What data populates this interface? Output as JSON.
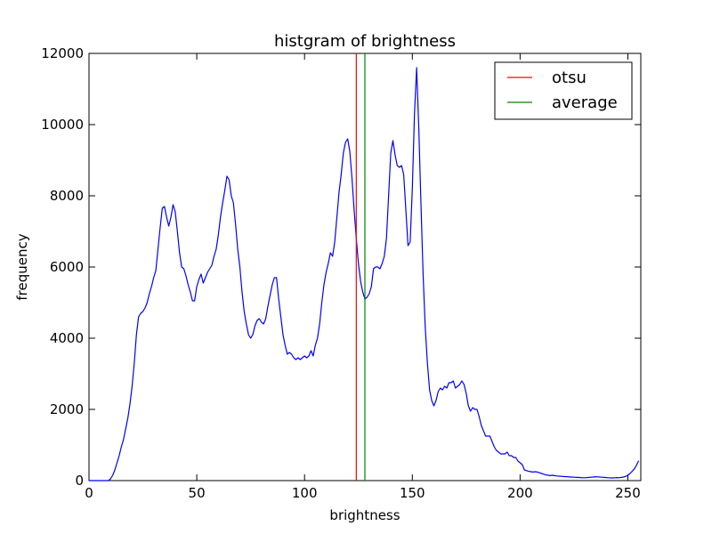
{
  "chart_data": {
    "type": "line",
    "title": "histgram of brightness",
    "xlabel": "brightness",
    "ylabel": "frequency",
    "xlim": [
      0,
      256
    ],
    "ylim": [
      0,
      12000
    ],
    "xticks": [
      "0",
      "50",
      "100",
      "150",
      "200",
      "250"
    ],
    "yticks": [
      "0",
      "2000",
      "4000",
      "6000",
      "8000",
      "10000",
      "12000"
    ],
    "grid": false,
    "legend_position": "top-right",
    "series": [
      {
        "name": "",
        "color": "#0000ff",
        "points": [
          [
            0,
            0
          ],
          [
            5,
            0
          ],
          [
            9,
            0
          ],
          [
            10,
            50
          ],
          [
            11,
            150
          ],
          [
            12,
            300
          ],
          [
            13,
            500
          ],
          [
            14,
            700
          ],
          [
            15,
            950
          ],
          [
            16,
            1150
          ],
          [
            17,
            1450
          ],
          [
            18,
            1750
          ],
          [
            19,
            2150
          ],
          [
            20,
            2650
          ],
          [
            21,
            3300
          ],
          [
            22,
            4100
          ],
          [
            23,
            4600
          ],
          [
            24,
            4700
          ],
          [
            25,
            4750
          ],
          [
            26,
            4850
          ],
          [
            27,
            5000
          ],
          [
            28,
            5250
          ],
          [
            29,
            5450
          ],
          [
            30,
            5700
          ],
          [
            31,
            5900
          ],
          [
            32,
            6500
          ],
          [
            33,
            7100
          ],
          [
            34,
            7650
          ],
          [
            35,
            7700
          ],
          [
            36,
            7400
          ],
          [
            37,
            7150
          ],
          [
            38,
            7400
          ],
          [
            39,
            7750
          ],
          [
            40,
            7550
          ],
          [
            41,
            7000
          ],
          [
            42,
            6400
          ],
          [
            43,
            6000
          ],
          [
            44,
            5950
          ],
          [
            45,
            5750
          ],
          [
            46,
            5500
          ],
          [
            47,
            5300
          ],
          [
            48,
            5050
          ],
          [
            49,
            5050
          ],
          [
            50,
            5450
          ],
          [
            51,
            5650
          ],
          [
            52,
            5800
          ],
          [
            53,
            5550
          ],
          [
            54,
            5700
          ],
          [
            55,
            5850
          ],
          [
            56,
            5950
          ],
          [
            57,
            6050
          ],
          [
            58,
            6300
          ],
          [
            59,
            6500
          ],
          [
            60,
            6900
          ],
          [
            61,
            7400
          ],
          [
            62,
            7800
          ],
          [
            63,
            8150
          ],
          [
            64,
            8550
          ],
          [
            65,
            8450
          ],
          [
            66,
            8000
          ],
          [
            67,
            7800
          ],
          [
            68,
            7200
          ],
          [
            69,
            6500
          ],
          [
            70,
            6000
          ],
          [
            71,
            5300
          ],
          [
            72,
            4750
          ],
          [
            73,
            4400
          ],
          [
            74,
            4100
          ],
          [
            75,
            4000
          ],
          [
            76,
            4100
          ],
          [
            77,
            4350
          ],
          [
            78,
            4500
          ],
          [
            79,
            4550
          ],
          [
            80,
            4450
          ],
          [
            81,
            4400
          ],
          [
            82,
            4550
          ],
          [
            83,
            4900
          ],
          [
            84,
            5200
          ],
          [
            85,
            5500
          ],
          [
            86,
            5700
          ],
          [
            87,
            5700
          ],
          [
            88,
            5100
          ],
          [
            89,
            4600
          ],
          [
            90,
            4100
          ],
          [
            91,
            3800
          ],
          [
            92,
            3550
          ],
          [
            93,
            3600
          ],
          [
            94,
            3550
          ],
          [
            95,
            3450
          ],
          [
            96,
            3400
          ],
          [
            97,
            3450
          ],
          [
            98,
            3400
          ],
          [
            99,
            3450
          ],
          [
            100,
            3500
          ],
          [
            101,
            3450
          ],
          [
            102,
            3500
          ],
          [
            103,
            3650
          ],
          [
            104,
            3500
          ],
          [
            105,
            3800
          ],
          [
            106,
            4000
          ],
          [
            107,
            4400
          ],
          [
            108,
            5000
          ],
          [
            109,
            5500
          ],
          [
            110,
            5850
          ],
          [
            111,
            6100
          ],
          [
            112,
            6400
          ],
          [
            113,
            6300
          ],
          [
            114,
            6700
          ],
          [
            115,
            7400
          ],
          [
            116,
            8100
          ],
          [
            117,
            8600
          ],
          [
            118,
            9200
          ],
          [
            119,
            9500
          ],
          [
            120,
            9600
          ],
          [
            121,
            9250
          ],
          [
            122,
            8500
          ],
          [
            123,
            7600
          ],
          [
            124,
            6800
          ],
          [
            125,
            6100
          ],
          [
            126,
            5600
          ],
          [
            127,
            5300
          ],
          [
            128,
            5100
          ],
          [
            129,
            5150
          ],
          [
            130,
            5250
          ],
          [
            131,
            5450
          ],
          [
            132,
            5950
          ],
          [
            133,
            6000
          ],
          [
            134,
            6000
          ],
          [
            135,
            5950
          ],
          [
            136,
            6100
          ],
          [
            137,
            6300
          ],
          [
            138,
            6800
          ],
          [
            139,
            8000
          ],
          [
            140,
            9200
          ],
          [
            141,
            9550
          ],
          [
            142,
            9150
          ],
          [
            143,
            8850
          ],
          [
            144,
            8800
          ],
          [
            145,
            8850
          ],
          [
            146,
            8600
          ],
          [
            147,
            7600
          ],
          [
            148,
            6600
          ],
          [
            149,
            6700
          ],
          [
            150,
            8200
          ],
          [
            151,
            10300
          ],
          [
            152,
            11600
          ],
          [
            153,
            9900
          ],
          [
            154,
            7800
          ],
          [
            155,
            5800
          ],
          [
            156,
            4300
          ],
          [
            157,
            3300
          ],
          [
            158,
            2550
          ],
          [
            159,
            2250
          ],
          [
            160,
            2100
          ],
          [
            161,
            2250
          ],
          [
            162,
            2500
          ],
          [
            163,
            2600
          ],
          [
            164,
            2550
          ],
          [
            165,
            2650
          ],
          [
            166,
            2600
          ],
          [
            167,
            2750
          ],
          [
            168,
            2750
          ],
          [
            169,
            2800
          ],
          [
            170,
            2600
          ],
          [
            171,
            2650
          ],
          [
            172,
            2700
          ],
          [
            173,
            2800
          ],
          [
            174,
            2700
          ],
          [
            175,
            2450
          ],
          [
            176,
            2100
          ],
          [
            177,
            1950
          ],
          [
            178,
            2050
          ],
          [
            179,
            2000
          ],
          [
            180,
            2000
          ],
          [
            181,
            1800
          ],
          [
            182,
            1550
          ],
          [
            183,
            1400
          ],
          [
            184,
            1250
          ],
          [
            185,
            1250
          ],
          [
            186,
            1250
          ],
          [
            187,
            1100
          ],
          [
            188,
            950
          ],
          [
            189,
            850
          ],
          [
            190,
            800
          ],
          [
            191,
            750
          ],
          [
            192,
            750
          ],
          [
            193,
            750
          ],
          [
            194,
            800
          ],
          [
            195,
            700
          ],
          [
            196,
            700
          ],
          [
            197,
            650
          ],
          [
            198,
            650
          ],
          [
            199,
            550
          ],
          [
            200,
            500
          ],
          [
            201,
            450
          ],
          [
            202,
            300
          ],
          [
            203,
            280
          ],
          [
            204,
            260
          ],
          [
            205,
            250
          ],
          [
            206,
            240
          ],
          [
            207,
            250
          ],
          [
            208,
            240
          ],
          [
            209,
            220
          ],
          [
            210,
            200
          ],
          [
            211,
            180
          ],
          [
            212,
            160
          ],
          [
            213,
            150
          ],
          [
            214,
            140
          ],
          [
            215,
            150
          ],
          [
            216,
            140
          ],
          [
            217,
            130
          ],
          [
            218,
            125
          ],
          [
            219,
            120
          ],
          [
            220,
            115
          ],
          [
            221,
            110
          ],
          [
            222,
            110
          ],
          [
            223,
            100
          ],
          [
            224,
            100
          ],
          [
            225,
            95
          ],
          [
            226,
            90
          ],
          [
            227,
            90
          ],
          [
            228,
            85
          ],
          [
            229,
            80
          ],
          [
            230,
            80
          ],
          [
            231,
            85
          ],
          [
            232,
            90
          ],
          [
            233,
            95
          ],
          [
            234,
            100
          ],
          [
            235,
            110
          ],
          [
            236,
            105
          ],
          [
            237,
            100
          ],
          [
            238,
            95
          ],
          [
            239,
            90
          ],
          [
            240,
            85
          ],
          [
            241,
            80
          ],
          [
            242,
            75
          ],
          [
            243,
            75
          ],
          [
            244,
            80
          ],
          [
            245,
            85
          ],
          [
            246,
            80
          ],
          [
            247,
            90
          ],
          [
            248,
            100
          ],
          [
            249,
            120
          ],
          [
            250,
            150
          ],
          [
            251,
            200
          ],
          [
            252,
            260
          ],
          [
            253,
            330
          ],
          [
            254,
            430
          ],
          [
            255,
            560
          ]
        ]
      }
    ],
    "vlines": [
      {
        "name": "otsu",
        "x": 124,
        "color": "#ff0000"
      },
      {
        "name": "average",
        "x": 128,
        "color": "#008000"
      }
    ]
  }
}
